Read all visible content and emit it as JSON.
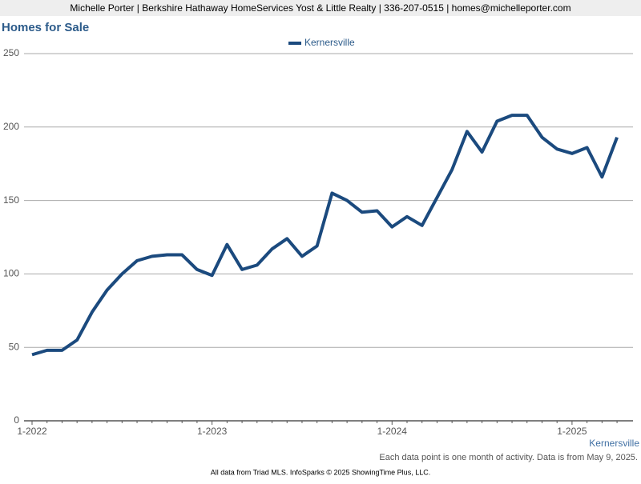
{
  "header": {
    "text": "Michelle Porter | Berkshire Hathaway HomeServices Yost & Little Realty | 336-207-0515 | homes@michelleporter.com"
  },
  "chart_data": {
    "type": "line",
    "title": "Homes for Sale",
    "categories": [
      "1-2022",
      null,
      null,
      null,
      null,
      null,
      null,
      null,
      null,
      null,
      null,
      null,
      "1-2023",
      null,
      null,
      null,
      null,
      null,
      null,
      null,
      null,
      null,
      null,
      null,
      "1-2024",
      null,
      null,
      null,
      null,
      null,
      null,
      null,
      null,
      null,
      null,
      null,
      "1-2025",
      null,
      null,
      null
    ],
    "series": [
      {
        "name": "Kernersville",
        "color": "#1b4a7e",
        "values": [
          45,
          48,
          48,
          55,
          74,
          89,
          100,
          109,
          112,
          113,
          113,
          103,
          99,
          120,
          103,
          106,
          117,
          124,
          112,
          119,
          155,
          150,
          142,
          143,
          132,
          139,
          133,
          152,
          171,
          197,
          183,
          204,
          208,
          208,
          193,
          185,
          182,
          186,
          166,
          193
        ]
      }
    ],
    "ylim": [
      0,
      250
    ],
    "yticks": [
      0,
      50,
      100,
      150,
      200,
      250
    ],
    "grid": true,
    "legend": "top",
    "end_label": "Kernersville"
  },
  "footnote": "Each data point is one month of activity. Data is from May 9, 2025.",
  "footer": "All data from Triad MLS. InfoSparks © 2025 ShowingTime Plus, LLC."
}
